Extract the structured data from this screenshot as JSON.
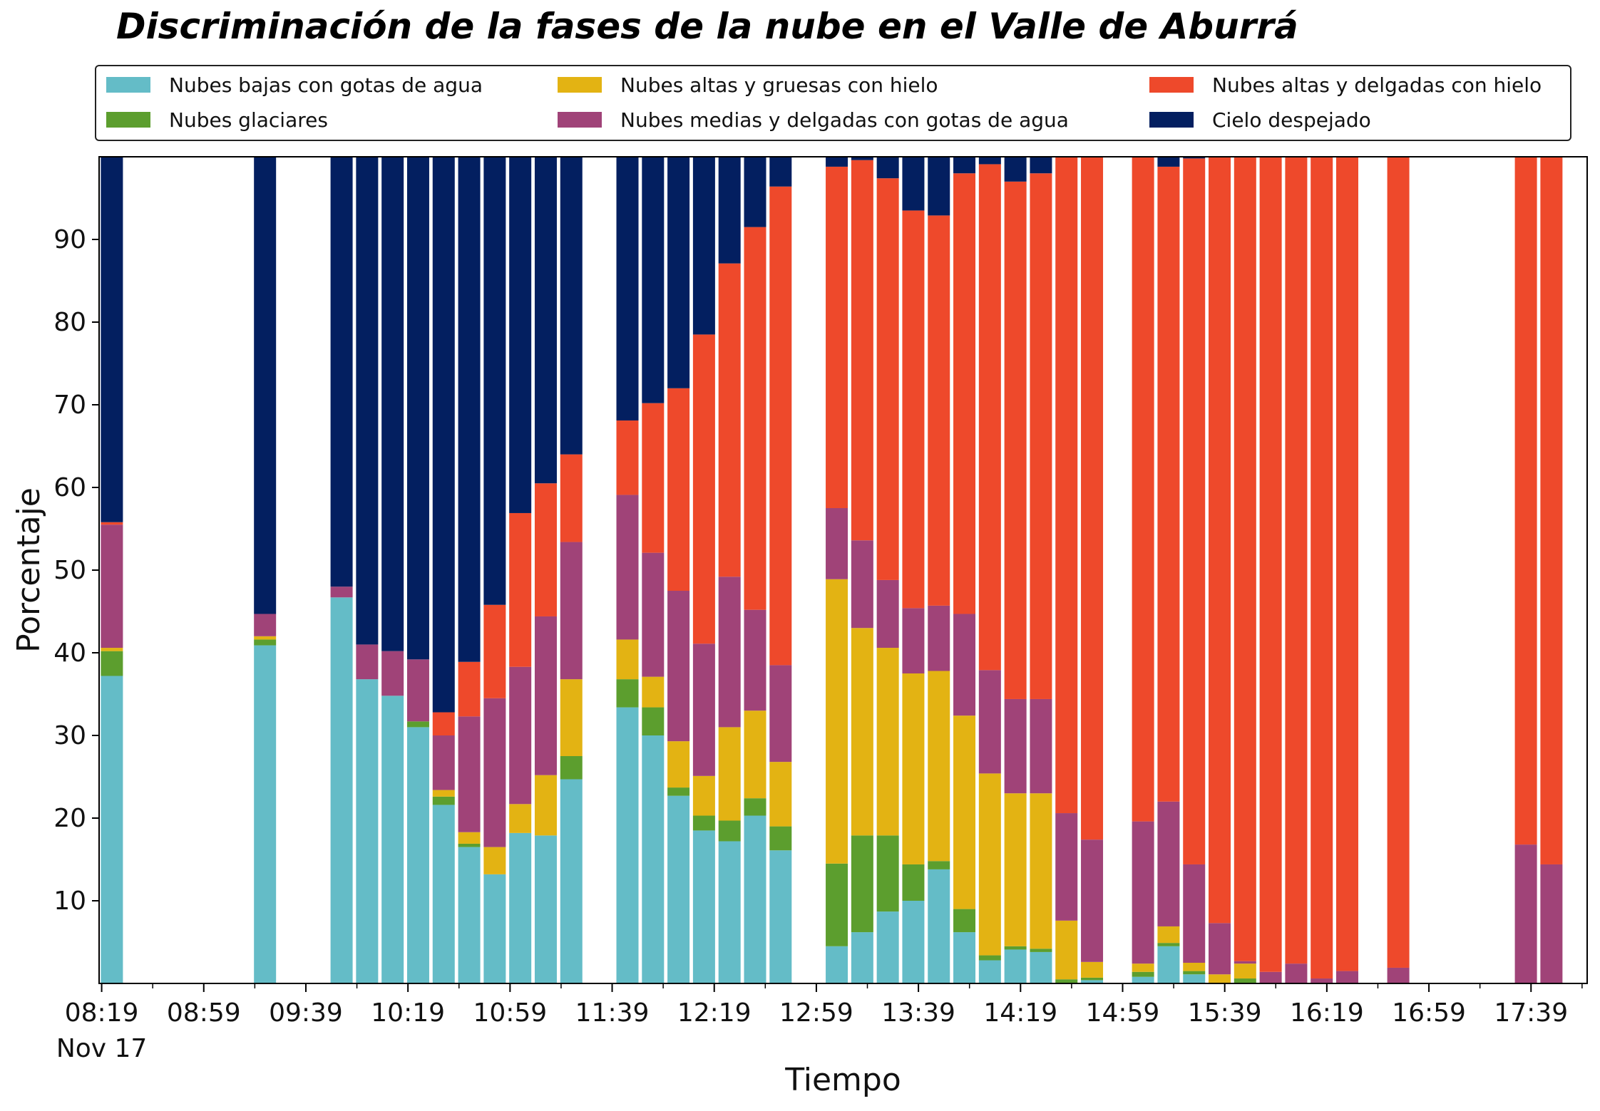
{
  "chart_data": {
    "type": "bar",
    "stacked": true,
    "title": "Discriminación de la fases de la nube en el Valle de Aburrá",
    "xlabel": "Tiempo",
    "ylabel": "Porcentaje",
    "ylim": [
      0,
      100
    ],
    "yticks": [
      10,
      20,
      30,
      40,
      50,
      60,
      70,
      80,
      90
    ],
    "x_minutes_range": [
      498,
      1081
    ],
    "x_ticks": [
      {
        "m": 499,
        "label": "08:19",
        "sub": "Nov 17"
      },
      {
        "m": 539,
        "label": "08:59"
      },
      {
        "m": 579,
        "label": "09:39"
      },
      {
        "m": 619,
        "label": "10:19"
      },
      {
        "m": 659,
        "label": "10:59"
      },
      {
        "m": 699,
        "label": "11:39"
      },
      {
        "m": 739,
        "label": "12:19"
      },
      {
        "m": 779,
        "label": "12:59"
      },
      {
        "m": 819,
        "label": "13:39"
      },
      {
        "m": 859,
        "label": "14:19"
      },
      {
        "m": 899,
        "label": "14:59"
      },
      {
        "m": 939,
        "label": "15:39"
      },
      {
        "m": 979,
        "label": "16:19"
      },
      {
        "m": 1019,
        "label": "16:59"
      },
      {
        "m": 1059,
        "label": "17:39"
      }
    ],
    "legend_position": "top",
    "series": [
      {
        "name": "Nubes bajas con gotas de agua",
        "color": "#64bcc7"
      },
      {
        "name": "Nubes glaciares",
        "color": "#5c9e2e"
      },
      {
        "name": "Nubes altas y gruesas con hielo",
        "color": "#e3b313"
      },
      {
        "name": "Nubes medias y delgadas con gotas de agua",
        "color": "#a04378"
      },
      {
        "name": "Nubes altas y delgadas con hielo",
        "color": "#ee492b"
      },
      {
        "name": "Cielo despejado",
        "color": "#031f60"
      }
    ],
    "bars": [
      {
        "m": 503,
        "values": [
          37.2,
          3.0,
          0.4,
          14.9,
          0.3,
          44.2
        ]
      },
      {
        "m": 563,
        "values": [
          40.9,
          0.7,
          0.4,
          2.7,
          0.0,
          55.3
        ]
      },
      {
        "m": 593,
        "values": [
          46.7,
          0.0,
          0.0,
          1.3,
          0.0,
          52.0
        ]
      },
      {
        "m": 603,
        "values": [
          36.8,
          0.0,
          0.0,
          4.2,
          0.0,
          59.0
        ]
      },
      {
        "m": 613,
        "values": [
          34.8,
          0.0,
          0.0,
          5.4,
          0.0,
          59.8
        ]
      },
      {
        "m": 623,
        "values": [
          31.0,
          0.7,
          0.0,
          7.5,
          0.0,
          60.8
        ]
      },
      {
        "m": 633,
        "values": [
          21.6,
          1.0,
          0.8,
          6.6,
          2.8,
          67.2
        ]
      },
      {
        "m": 643,
        "values": [
          16.5,
          0.4,
          1.4,
          14.0,
          6.6,
          61.1
        ]
      },
      {
        "m": 653,
        "values": [
          13.2,
          0.0,
          3.3,
          18.0,
          11.3,
          54.2
        ]
      },
      {
        "m": 663,
        "values": [
          18.2,
          0.0,
          3.5,
          16.6,
          18.6,
          43.1
        ]
      },
      {
        "m": 673,
        "values": [
          17.9,
          0.0,
          7.3,
          19.2,
          16.1,
          39.5
        ]
      },
      {
        "m": 683,
        "values": [
          24.7,
          2.8,
          9.3,
          16.6,
          10.6,
          36.0
        ]
      },
      {
        "m": 705,
        "values": [
          33.4,
          3.4,
          4.8,
          17.5,
          9.0,
          31.9
        ]
      },
      {
        "m": 715,
        "values": [
          30.0,
          3.4,
          3.7,
          15.0,
          18.1,
          29.8
        ]
      },
      {
        "m": 725,
        "values": [
          22.7,
          1.0,
          5.6,
          18.2,
          24.5,
          28.0
        ]
      },
      {
        "m": 735,
        "values": [
          18.5,
          1.8,
          4.8,
          16.0,
          37.4,
          21.5
        ]
      },
      {
        "m": 745,
        "values": [
          17.2,
          2.5,
          11.3,
          18.2,
          37.9,
          12.9
        ]
      },
      {
        "m": 755,
        "values": [
          20.3,
          2.1,
          10.6,
          12.2,
          46.3,
          8.5
        ]
      },
      {
        "m": 765,
        "values": [
          16.1,
          2.9,
          7.8,
          11.7,
          57.9,
          3.6
        ]
      },
      {
        "m": 787,
        "values": [
          4.5,
          10.0,
          34.4,
          8.6,
          41.3,
          1.2
        ]
      },
      {
        "m": 797,
        "values": [
          6.2,
          11.7,
          25.1,
          10.6,
          46.0,
          0.4
        ]
      },
      {
        "m": 807,
        "values": [
          8.7,
          9.2,
          22.7,
          8.2,
          48.6,
          2.6
        ]
      },
      {
        "m": 817,
        "values": [
          10.0,
          4.4,
          23.1,
          7.9,
          48.1,
          6.5
        ]
      },
      {
        "m": 827,
        "values": [
          13.8,
          1.0,
          23.0,
          7.9,
          47.2,
          7.1
        ]
      },
      {
        "m": 837,
        "values": [
          6.2,
          2.8,
          23.4,
          12.3,
          53.3,
          2.0
        ]
      },
      {
        "m": 847,
        "values": [
          2.8,
          0.6,
          22.0,
          12.5,
          61.2,
          0.9
        ]
      },
      {
        "m": 857,
        "values": [
          4.1,
          0.4,
          18.5,
          11.4,
          62.6,
          3.0
        ]
      },
      {
        "m": 867,
        "values": [
          3.8,
          0.4,
          18.8,
          11.4,
          63.6,
          2.0
        ]
      },
      {
        "m": 877,
        "values": [
          0.0,
          0.5,
          7.1,
          13.0,
          79.4,
          0.0
        ]
      },
      {
        "m": 887,
        "values": [
          0.4,
          0.3,
          1.9,
          14.8,
          82.6,
          0.0
        ]
      },
      {
        "m": 907,
        "values": [
          0.8,
          0.6,
          1.0,
          17.2,
          80.4,
          0.0
        ]
      },
      {
        "m": 917,
        "values": [
          4.5,
          0.4,
          2.0,
          15.1,
          76.8,
          1.2
        ]
      },
      {
        "m": 927,
        "values": [
          1.1,
          0.4,
          1.0,
          11.9,
          85.4,
          0.2
        ]
      },
      {
        "m": 937,
        "values": [
          0.0,
          0.0,
          1.1,
          6.2,
          92.7,
          0.0
        ]
      },
      {
        "m": 947,
        "values": [
          0.0,
          0.6,
          1.8,
          0.3,
          97.3,
          0.0
        ]
      },
      {
        "m": 957,
        "values": [
          0.0,
          0.0,
          0.0,
          1.4,
          98.6,
          0.0
        ]
      },
      {
        "m": 967,
        "values": [
          0.0,
          0.0,
          0.0,
          2.4,
          97.6,
          0.0
        ]
      },
      {
        "m": 977,
        "values": [
          0.0,
          0.0,
          0.0,
          0.6,
          99.4,
          0.0
        ]
      },
      {
        "m": 987,
        "values": [
          0.0,
          0.0,
          0.0,
          1.5,
          98.5,
          0.0
        ]
      },
      {
        "m": 1007,
        "values": [
          0.0,
          0.0,
          0.0,
          1.9,
          98.1,
          0.0
        ]
      },
      {
        "m": 1057,
        "values": [
          0.0,
          0.0,
          0.0,
          16.8,
          83.2,
          0.0
        ]
      },
      {
        "m": 1067,
        "values": [
          0.0,
          0.0,
          0.0,
          14.4,
          85.6,
          0.0
        ]
      }
    ]
  }
}
